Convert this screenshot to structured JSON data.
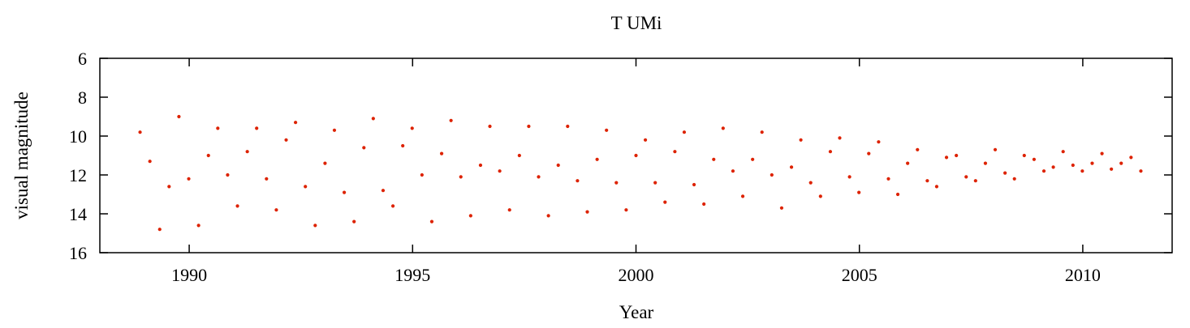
{
  "chart_data": {
    "type": "scatter",
    "title": "T UMi",
    "xlabel": "Year",
    "ylabel": "visual magnitude",
    "xlim": [
      1988,
      2012
    ],
    "ylim": [
      6,
      16
    ],
    "y_inverted": true,
    "grid": false,
    "legend": "none",
    "x_ticks": [
      1990,
      1995,
      2000,
      2005,
      2010
    ],
    "y_ticks": [
      6,
      8,
      10,
      12,
      14,
      16
    ],
    "point_color": "#dd2200",
    "series": [
      {
        "label": "",
        "points": [
          [
            1988.9,
            9.8
          ],
          [
            1989.12,
            11.3
          ],
          [
            1989.34,
            14.8
          ],
          [
            1989.55,
            12.6
          ],
          [
            1989.77,
            9.0
          ],
          [
            1989.99,
            12.2
          ],
          [
            1990.21,
            14.6
          ],
          [
            1990.43,
            11.0
          ],
          [
            1990.64,
            9.6
          ],
          [
            1990.86,
            12.0
          ],
          [
            1991.08,
            13.6
          ],
          [
            1991.3,
            10.8
          ],
          [
            1991.51,
            9.6
          ],
          [
            1991.73,
            12.2
          ],
          [
            1991.95,
            13.8
          ],
          [
            1992.17,
            10.2
          ],
          [
            1992.38,
            9.3
          ],
          [
            1992.6,
            12.6
          ],
          [
            1992.82,
            14.6
          ],
          [
            1993.04,
            11.4
          ],
          [
            1993.25,
            9.7
          ],
          [
            1993.47,
            12.9
          ],
          [
            1993.69,
            14.4
          ],
          [
            1993.91,
            10.6
          ],
          [
            1994.12,
            9.1
          ],
          [
            1994.34,
            12.8
          ],
          [
            1994.56,
            13.6
          ],
          [
            1994.78,
            10.5
          ],
          [
            1994.99,
            9.6
          ],
          [
            1995.21,
            12.0
          ],
          [
            1995.43,
            14.4
          ],
          [
            1995.65,
            10.9
          ],
          [
            1995.86,
            9.2
          ],
          [
            1996.08,
            12.1
          ],
          [
            1996.3,
            14.1
          ],
          [
            1996.52,
            11.5
          ],
          [
            1996.73,
            9.5
          ],
          [
            1996.95,
            11.8
          ],
          [
            1997.17,
            13.8
          ],
          [
            1997.39,
            11.0
          ],
          [
            1997.6,
            9.5
          ],
          [
            1997.82,
            12.1
          ],
          [
            1998.04,
            14.1
          ],
          [
            1998.26,
            11.5
          ],
          [
            1998.47,
            9.5
          ],
          [
            1998.69,
            12.3
          ],
          [
            1998.91,
            13.9
          ],
          [
            1999.13,
            11.2
          ],
          [
            1999.34,
            9.7
          ],
          [
            1999.56,
            12.4
          ],
          [
            1999.78,
            13.8
          ],
          [
            2000.0,
            11.0
          ],
          [
            2000.21,
            10.2
          ],
          [
            2000.43,
            12.4
          ],
          [
            2000.65,
            13.4
          ],
          [
            2000.87,
            10.8
          ],
          [
            2001.08,
            9.8
          ],
          [
            2001.3,
            12.5
          ],
          [
            2001.52,
            13.5
          ],
          [
            2001.74,
            11.2
          ],
          [
            2001.95,
            9.6
          ],
          [
            2002.17,
            11.8
          ],
          [
            2002.39,
            13.1
          ],
          [
            2002.61,
            11.2
          ],
          [
            2002.82,
            9.8
          ],
          [
            2003.04,
            12.0
          ],
          [
            2003.26,
            13.7
          ],
          [
            2003.48,
            11.6
          ],
          [
            2003.69,
            10.2
          ],
          [
            2003.91,
            12.4
          ],
          [
            2004.13,
            13.1
          ],
          [
            2004.35,
            10.8
          ],
          [
            2004.56,
            10.1
          ],
          [
            2004.78,
            12.1
          ],
          [
            2004.99,
            12.9
          ],
          [
            2005.21,
            10.9
          ],
          [
            2005.43,
            10.3
          ],
          [
            2005.65,
            12.2
          ],
          [
            2005.86,
            13.0
          ],
          [
            2006.08,
            11.4
          ],
          [
            2006.3,
            10.7
          ],
          [
            2006.52,
            12.3
          ],
          [
            2006.73,
            12.6
          ],
          [
            2006.95,
            11.1
          ],
          [
            2007.17,
            11.0
          ],
          [
            2007.39,
            12.1
          ],
          [
            2007.6,
            12.3
          ],
          [
            2007.82,
            11.4
          ],
          [
            2008.04,
            10.7
          ],
          [
            2008.26,
            11.9
          ],
          [
            2008.47,
            12.2
          ],
          [
            2008.69,
            11.0
          ],
          [
            2008.91,
            11.2
          ],
          [
            2009.13,
            11.8
          ],
          [
            2009.34,
            11.6
          ],
          [
            2009.56,
            10.8
          ],
          [
            2009.78,
            11.5
          ],
          [
            2009.99,
            11.8
          ],
          [
            2010.21,
            11.4
          ],
          [
            2010.43,
            10.9
          ],
          [
            2010.64,
            11.7
          ],
          [
            2010.86,
            11.4
          ],
          [
            2011.08,
            11.1
          ],
          [
            2011.3,
            11.8
          ]
        ]
      }
    ]
  }
}
